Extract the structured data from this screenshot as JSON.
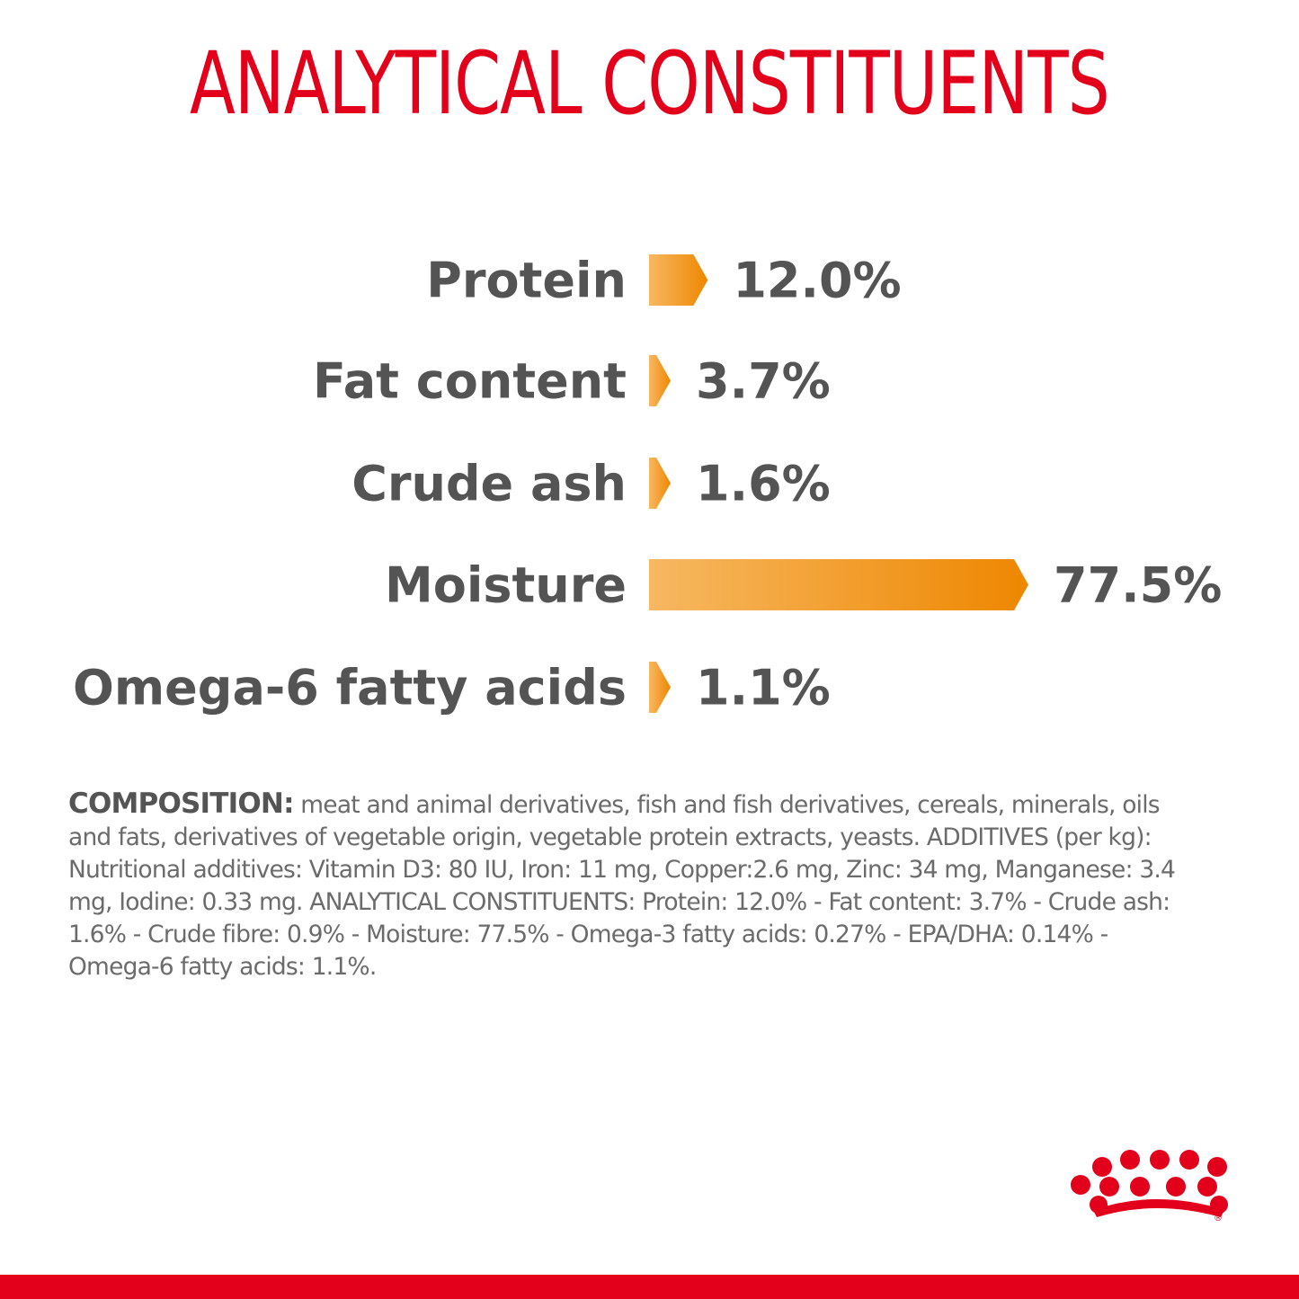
{
  "title": "ANALYTICAL CONSTITUENTS",
  "chart_data": {
    "type": "bar",
    "orientation": "horizontal",
    "categories": [
      "Protein",
      "Fat content",
      "Crude ash",
      "Moisture",
      "Omega-6 fatty acids"
    ],
    "values": [
      12.0,
      3.7,
      1.6,
      77.5,
      1.1
    ],
    "value_labels": [
      "12.0%",
      "3.7%",
      "1.6%",
      "77.5%",
      "1.1%"
    ],
    "unit": "%",
    "title": "ANALYTICAL CONSTITUENTS",
    "xlabel": "",
    "ylabel": "",
    "xlim": [
      0,
      77.5
    ],
    "grid": false,
    "legend": "none",
    "bar_colors": [
      "#f7b862",
      "#ee8700"
    ]
  },
  "composition": {
    "heading": "COMPOSITION:",
    "text": " meat and animal derivatives, fish and fish derivatives, cereals, minerals, oils and fats, derivatives of vegetable origin, vegetable protein extracts, yeasts. ADDITIVES (per kg): Nutritional additives: Vitamin D3: 80 IU, Iron: 11 mg, Copper:2.6 mg, Zinc: 34 mg, Manganese: 3.4 mg, Iodine: 0.33 mg. ANALYTICAL CONSTITUENTS: Protein: 12.0% - Fat content: 3.7% - Crude ash: 1.6% - Crude fibre: 0.9% - Moisture: 77.5% - Omega-3 fatty acids: 0.27% - EPA/DHA: 0.14% - Omega-6 fatty acids: 1.1%."
  },
  "colors": {
    "brand_red": "#e2001a",
    "text_gray": "#545454"
  },
  "logo": {
    "icon": "crown-dots-icon",
    "mark": "®"
  }
}
